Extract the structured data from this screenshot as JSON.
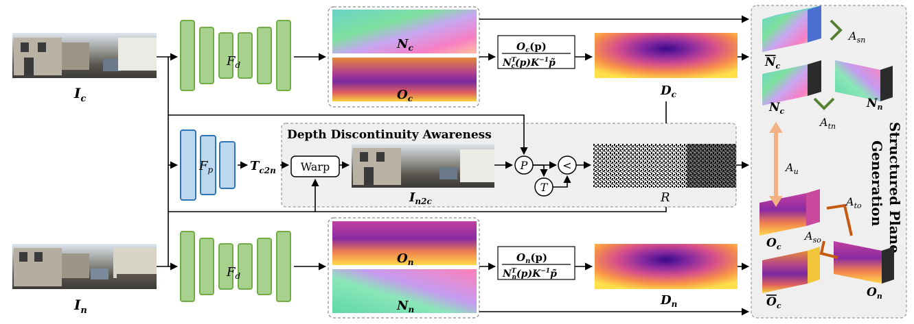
{
  "inputs": {
    "current_label": "I",
    "current_sub": "c",
    "next_label": "I",
    "next_sub": "n"
  },
  "encoders": {
    "depth_label": "F",
    "depth_sub": "d",
    "pose_label": "F",
    "pose_sub": "p"
  },
  "outputs_top": {
    "normal_label": "N",
    "normal_sub": "c",
    "offset_label": "O",
    "offset_sub": "c"
  },
  "outputs_bottom": {
    "offset_label": "O",
    "offset_sub": "n",
    "normal_label": "N",
    "normal_sub": "n"
  },
  "formula_top": {
    "numerator": "O",
    "numerator_sub": "c",
    "numerator_arg": "(p)",
    "denominator": "N",
    "denominator_sub": "c",
    "denominator_sup": "T",
    "denominator_rest": "(p)K",
    "denominator_inv": "−1",
    "denominator_tail": "p̃"
  },
  "formula_bottom": {
    "numerator": "O",
    "numerator_sub": "n",
    "numerator_arg": "(p)",
    "denominator": "N",
    "denominator_sub": "n",
    "denominator_sup": "T",
    "denominator_rest": "(p)K",
    "denominator_inv": "−1",
    "denominator_tail": "p̃"
  },
  "depth_top": {
    "label": "D",
    "sub": "c"
  },
  "depth_bottom": {
    "label": "D",
    "sub": "n"
  },
  "ddaware": {
    "title": "Depth Discontinuity Awareness",
    "warp_label": "Warp",
    "pose_out_label": "T",
    "pose_out_sub": "c2n",
    "warped_label": "I",
    "warped_sub": "n2c",
    "p_op": "P",
    "t_op": "T",
    "lt_op": "<",
    "mask_label": "R"
  },
  "spg": {
    "title_line1": "Structured Plane",
    "title_line2": "Generation",
    "nbar_label": "N",
    "nbar_sub": "c",
    "nc_label": "N",
    "nc_sub": "c",
    "nn_label": "N",
    "nn_sub": "n",
    "oc_label": "O",
    "oc_sub": "c",
    "obar_label": "O",
    "obar_sub": "c",
    "on_label": "O",
    "on_sub": "n",
    "a_sn": "A",
    "a_sn_sub": "sn",
    "a_tn": "A",
    "a_tn_sub": "tn",
    "a_u": "A",
    "a_u_sub": "u",
    "a_to": "A",
    "a_to_sub": "to",
    "a_so": "A",
    "a_so_sub": "so"
  },
  "colors": {
    "encoder_green": "#a9d18e",
    "encoder_green_stroke": "#70ad47",
    "encoder_blue": "#bdd7ee",
    "encoder_blue_stroke": "#2e75b6",
    "green_arrow": "#548235",
    "orange_arrow": "#c55a11",
    "yellow_arrow": "#f4b183"
  }
}
